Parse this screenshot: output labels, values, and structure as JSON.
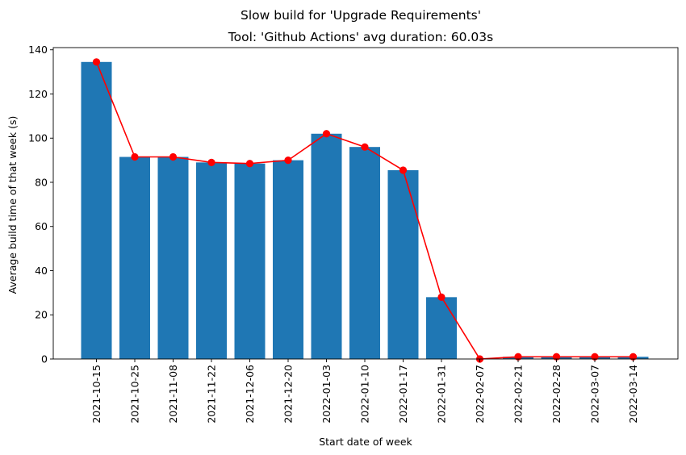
{
  "chart_data": {
    "type": "bar",
    "suptitle": "Slow build for 'Upgrade Requirements'",
    "title": "Tool: 'Github Actions' avg duration: 60.03s",
    "xlabel": "Start date of week",
    "ylabel": "Average build time of that week (s)",
    "ylim": [
      0,
      141
    ],
    "yticks": [
      "0",
      "20",
      "40",
      "60",
      "80",
      "100",
      "120",
      "140"
    ],
    "categories": [
      "2021-10-15",
      "2021-10-25",
      "2021-11-08",
      "2021-11-22",
      "2021-12-06",
      "2021-12-20",
      "2022-01-03",
      "2022-01-10",
      "2022-01-17",
      "2022-01-31",
      "2022-02-07",
      "2022-02-21",
      "2022-02-28",
      "2022-03-07",
      "2022-03-14"
    ],
    "series": [
      {
        "kind": "bar",
        "color": "#1f77b4",
        "values": [
          134.5,
          91.5,
          91.5,
          89,
          88.5,
          90,
          102,
          96,
          85.5,
          28,
          0,
          1,
          1,
          1,
          1
        ]
      },
      {
        "kind": "line",
        "color": "#ff0000",
        "marker": "circle",
        "values": [
          134.5,
          91.5,
          91.5,
          89,
          88.5,
          90,
          102,
          96,
          85.5,
          28,
          0,
          1,
          1,
          1,
          1
        ]
      }
    ],
    "grid": false,
    "legend": "none"
  }
}
